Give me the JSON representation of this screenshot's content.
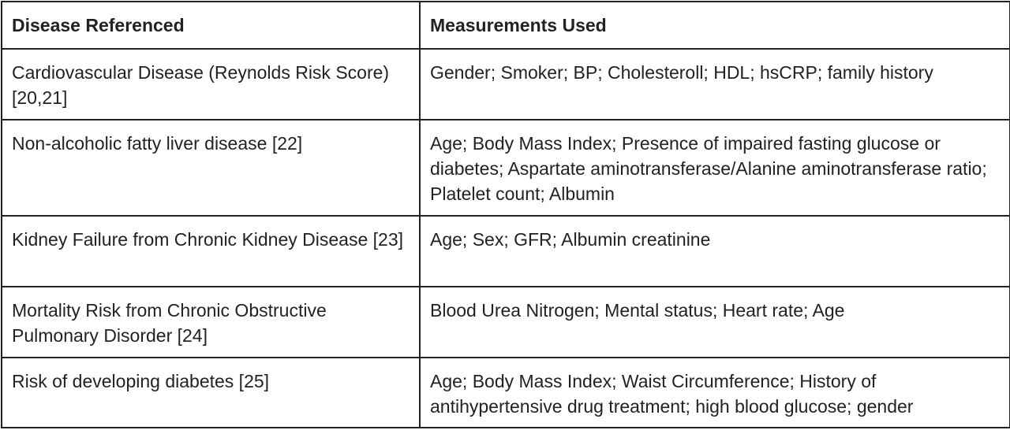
{
  "table": {
    "headers": [
      "Disease Referenced",
      "Measurements Used"
    ],
    "rows": [
      {
        "disease": "Cardiovascular Disease (Reynolds Risk Score) [20,21]",
        "measurements": "Gender; Smoker; BP; Cholesteroll; HDL; hsCRP; family history"
      },
      {
        "disease": "Non-alcoholic fatty liver disease [22]",
        "measurements": "Age; Body Mass Index; Presence of impaired fasting glucose or diabetes; Aspartate aminotransferase/Alanine aminotransferase ratio; Platelet count; Albumin"
      },
      {
        "disease": "Kidney Failure from Chronic Kidney Disease [23]",
        "measurements": "Age; Sex; GFR; Albumin creatinine"
      },
      {
        "disease": "Mortality Risk from Chronic Obstructive Pulmonary Disorder [24]",
        "measurements": "Blood Urea Nitrogen; Mental status; Heart rate; Age"
      },
      {
        "disease": "Risk of developing diabetes [25]",
        "measurements": "Age; Body Mass Index; Waist Circumference; History of antihypertensive drug treatment; high blood glucose; gender"
      }
    ]
  }
}
